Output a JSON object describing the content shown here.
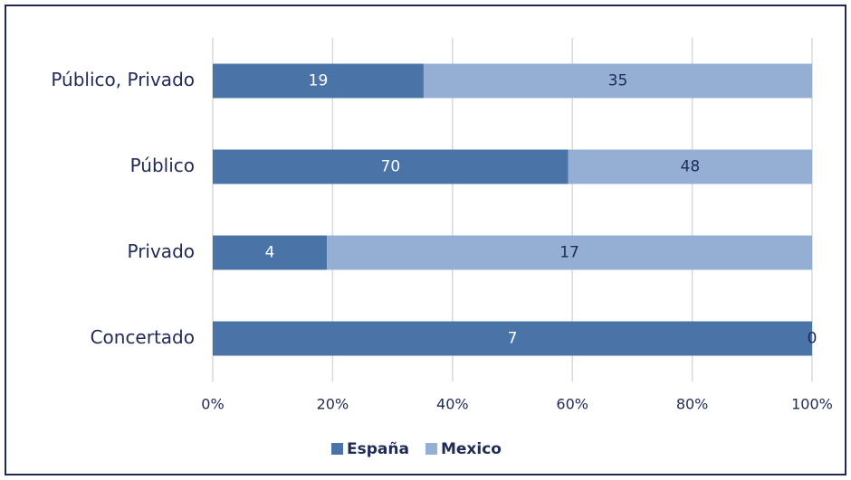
{
  "chart_data": {
    "type": "bar",
    "orientation": "horizontal",
    "stacking": "percent",
    "categories": [
      "Público, Privado",
      "Público",
      "Privado",
      "Concertado"
    ],
    "series": [
      {
        "name": "España",
        "color": "#4a74a8",
        "values": [
          19,
          70,
          4,
          7
        ]
      },
      {
        "name": "Mexico",
        "color": "#95aed4",
        "values": [
          35,
          48,
          17,
          0
        ]
      }
    ],
    "xlim": [
      0,
      100
    ],
    "xticks": [
      {
        "value": 0,
        "label": "0%"
      },
      {
        "value": 20,
        "label": "20%"
      },
      {
        "value": 40,
        "label": "40%"
      },
      {
        "value": 60,
        "label": "60%"
      },
      {
        "value": 80,
        "label": "80%"
      },
      {
        "value": 100,
        "label": "100%"
      }
    ],
    "grid": true,
    "legend": "bottom"
  }
}
